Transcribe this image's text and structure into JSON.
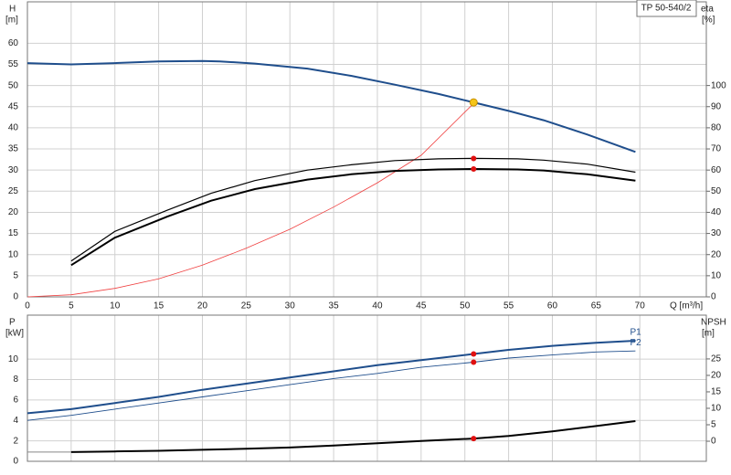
{
  "chart_data": [
    {
      "type": "line",
      "title": "TP 50-540/2",
      "xlabel": "Q [m³/h]",
      "ylabel": "H",
      "yunit": "[m]",
      "y2label": "eta",
      "y2unit": "[%]",
      "xlim": [
        0,
        77.6
      ],
      "xticks": [
        0,
        5,
        10,
        15,
        20,
        25,
        30,
        35,
        40,
        45,
        50,
        55,
        60,
        65,
        70
      ],
      "ylim": [
        0,
        69.8
      ],
      "yticks": [
        0,
        5,
        10,
        15,
        20,
        25,
        30,
        35,
        40,
        45,
        50,
        55,
        60
      ],
      "y2lim": [
        0,
        139.6
      ],
      "y2ticks": [
        0,
        10,
        20,
        30,
        40,
        50,
        60,
        70,
        80,
        90,
        100
      ],
      "grid": true,
      "series": [
        {
          "color": "#1f4e8c",
          "width": 2,
          "axis": "y",
          "x": [
            0,
            5,
            10,
            15,
            20,
            22,
            26,
            32,
            37,
            42,
            47,
            51,
            55,
            59,
            64,
            69.5
          ],
          "values": [
            55.3,
            55,
            55.3,
            55.7,
            55.8,
            55.7,
            55.2,
            54,
            52.3,
            50.2,
            48,
            46,
            44,
            41.8,
            38.4,
            34.3
          ]
        },
        {
          "color": "#f04040",
          "width": 0.8,
          "axis": "y2",
          "x": [
            0,
            5,
            10,
            15,
            20,
            25,
            30,
            35,
            40,
            45,
            51
          ],
          "values": [
            0,
            1,
            4,
            8.5,
            15,
            23,
            32,
            42.5,
            54,
            67,
            91.5
          ]
        },
        {
          "color": "#000000",
          "width": 1.2,
          "axis": "y2",
          "x": [
            5,
            10,
            16,
            21,
            26,
            32,
            37,
            42,
            47,
            51,
            56,
            59,
            64,
            69.5
          ],
          "values": [
            17,
            31,
            41,
            49,
            55,
            60,
            62.5,
            64.5,
            65.3,
            65.5,
            65.3,
            64.7,
            62.8,
            59
          ]
        },
        {
          "color": "#000000",
          "width": 2,
          "axis": "y2",
          "x": [
            5,
            10,
            16,
            21,
            26,
            32,
            37,
            42,
            47,
            51,
            56,
            59,
            64,
            69.5
          ],
          "values": [
            15,
            28,
            38,
            45.5,
            51,
            55.5,
            58,
            59.6,
            60.3,
            60.5,
            60.3,
            59.8,
            58,
            55
          ]
        }
      ],
      "points": [
        {
          "x": 51,
          "y": 46,
          "color": "#f5c518",
          "axis": "y"
        },
        {
          "x": 51,
          "y": 65.5,
          "color": "#e01010",
          "axis": "y2"
        },
        {
          "x": 51,
          "y": 60.5,
          "color": "#e01010",
          "axis": "y2"
        }
      ]
    },
    {
      "type": "line",
      "ylabel": "P",
      "yunit": "[kW]",
      "y2label": "NPSH",
      "y2unit": "[m]",
      "xlim": [
        0,
        77.6
      ],
      "ylim": [
        0,
        14.3
      ],
      "yticks": [
        0,
        2,
        4,
        6,
        8,
        10
      ],
      "y2lim": [
        -6.1,
        38.3
      ],
      "y2ticks": [
        0,
        5,
        10,
        15,
        20,
        25
      ],
      "grid": true,
      "series": [
        {
          "name": "P1",
          "color": "#1f4e8c",
          "width": 2,
          "axis": "y",
          "x": [
            0,
            5,
            10,
            15,
            20,
            25,
            30,
            35,
            40,
            45,
            51,
            55,
            60,
            65,
            69.5
          ],
          "values": [
            4.7,
            5.1,
            5.7,
            6.3,
            7.0,
            7.6,
            8.2,
            8.8,
            9.4,
            9.9,
            10.5,
            10.9,
            11.3,
            11.6,
            11.8
          ]
        },
        {
          "name": "P2",
          "color": "#1f4e8c",
          "width": 0.9,
          "axis": "y",
          "x": [
            0,
            5,
            10,
            15,
            20,
            25,
            30,
            35,
            40,
            45,
            51,
            55,
            60,
            65,
            69.5
          ],
          "values": [
            4.0,
            4.5,
            5.1,
            5.7,
            6.3,
            6.9,
            7.5,
            8.1,
            8.6,
            9.2,
            9.7,
            10.1,
            10.4,
            10.7,
            10.8
          ]
        },
        {
          "color": "#888888",
          "width": 1,
          "axis": "y2",
          "x": [
            0,
            5
          ],
          "values": [
            -3.3,
            -3.3
          ]
        },
        {
          "color": "#000000",
          "width": 2,
          "axis": "y2",
          "x": [
            5,
            10,
            15,
            20,
            25,
            30,
            35,
            40,
            45,
            51,
            55,
            60,
            65,
            69.5
          ],
          "values": [
            -3.3,
            -3.1,
            -2.9,
            -2.6,
            -2.3,
            -1.9,
            -1.3,
            -0.6,
            0.1,
            0.8,
            1.6,
            3.0,
            4.6,
            6.1
          ]
        }
      ],
      "points": [
        {
          "x": 51,
          "y": 10.5,
          "color": "#e01010",
          "axis": "y"
        },
        {
          "x": 51,
          "y": 9.7,
          "color": "#e01010",
          "axis": "y"
        },
        {
          "x": 51,
          "y": 0.8,
          "color": "#e01010",
          "axis": "y2"
        }
      ]
    }
  ]
}
